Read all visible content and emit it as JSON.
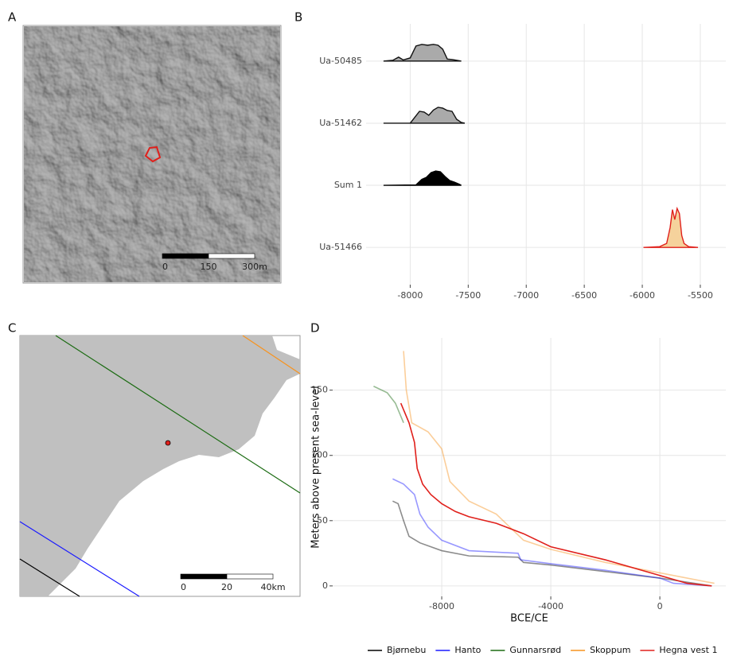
{
  "chart_data": [
    {
      "type": "map",
      "label": "A",
      "scale_bar": [
        0,
        150,
        {
          "value": 300,
          "label": "300m"
        }
      ]
    },
    {
      "type": "ridgeline",
      "label": "B",
      "categories": [
        "Ua-50485",
        "Ua-51462",
        "Sum 1",
        "Ua-51466"
      ],
      "xlim": [
        -8380,
        -5280
      ],
      "xticks": [
        -8000,
        -7500,
        -7000,
        -6500,
        -6000,
        -5500
      ],
      "grid": true,
      "ridges": [
        {
          "x": [
            -8230,
            -8150,
            -8100,
            -8060,
            -8000,
            -7950,
            -7900,
            -7850,
            -7800,
            -7760,
            -7720,
            -7680,
            -7640,
            -7600,
            -7560
          ],
          "values": [
            0,
            0.02,
            0.1,
            0.03,
            0.08,
            0.38,
            0.42,
            0.4,
            0.42,
            0.4,
            0.3,
            0.05,
            0.04,
            0.02,
            0
          ],
          "fill": "#aaaaaa",
          "color": "#111111"
        },
        {
          "x": [
            -8230,
            -8000,
            -7960,
            -7920,
            -7880,
            -7840,
            -7800,
            -7760,
            -7720,
            -7680,
            -7640,
            -7600,
            -7560,
            -7530
          ],
          "values": [
            0,
            0,
            0.15,
            0.3,
            0.28,
            0.2,
            0.33,
            0.4,
            0.38,
            0.32,
            0.3,
            0.1,
            0.02,
            0
          ],
          "fill": "#aaaaaa",
          "color": "#111111"
        },
        {
          "x": [
            -8230,
            -7950,
            -7900,
            -7860,
            -7820,
            -7780,
            -7740,
            -7700,
            -7660,
            -7620,
            -7580,
            -7560
          ],
          "values": [
            0,
            0.01,
            0.15,
            0.2,
            0.32,
            0.36,
            0.34,
            0.22,
            0.12,
            0.08,
            0.03,
            0
          ],
          "fill": "#000000",
          "color": "#000000"
        },
        {
          "x": [
            -5990,
            -5850,
            -5790,
            -5760,
            -5740,
            -5720,
            -5700,
            -5680,
            -5660,
            -5640,
            -5600,
            -5520
          ],
          "values": [
            0,
            0.02,
            0.1,
            0.5,
            0.95,
            0.7,
            0.98,
            0.85,
            0.3,
            0.1,
            0.02,
            0
          ],
          "fill": "#f5d29c",
          "color": "#e0201b"
        }
      ]
    },
    {
      "type": "map",
      "label": "C",
      "scale_bar": [
        0,
        20,
        {
          "value": 40,
          "label": "40km"
        }
      ]
    },
    {
      "type": "line",
      "label": "D",
      "xlabel": "BCE/CE",
      "ylabel": "Meters above present sea-level",
      "xlim": [
        -12000,
        2420
      ],
      "ylim": [
        -8,
        190
      ],
      "xticks": [
        -8000,
        -4000,
        0
      ],
      "yticks": [
        0,
        50,
        100,
        150
      ],
      "grid": true,
      "legend": "bottom",
      "series": [
        {
          "name": "Bjørnebu",
          "color": "#000000",
          "x": [
            -9800,
            -9600,
            -9400,
            -9200,
            -8800,
            -8000,
            -7000,
            -5200,
            -5000,
            -4000,
            -2000,
            0,
            1900
          ],
          "values": [
            65,
            63,
            50,
            38,
            33,
            27,
            23,
            22,
            18,
            16,
            11,
            6,
            0
          ]
        },
        {
          "name": "Hanto",
          "color": "#1a1aff",
          "x": [
            -9800,
            -9400,
            -9000,
            -8800,
            -8500,
            -8000,
            -7000,
            -5200,
            -5100,
            -4000,
            -2000,
            0,
            500,
            1900
          ],
          "values": [
            82,
            78,
            70,
            55,
            45,
            35,
            27,
            25,
            20,
            17,
            12,
            6,
            2,
            0
          ]
        },
        {
          "name": "Gunnarsrød",
          "color": "#1b6b12",
          "x": [
            -10500,
            -10000,
            -9700,
            -9400
          ],
          "values": [
            153,
            148,
            140,
            125
          ]
        },
        {
          "name": "Skoppum",
          "color": "#f7931e",
          "x": [
            -9400,
            -9300,
            -9100,
            -8500,
            -8000,
            -7700,
            -7000,
            -6000,
            -5000,
            -4000,
            -2000,
            0,
            2000
          ],
          "values": [
            180,
            150,
            125,
            118,
            105,
            80,
            65,
            55,
            35,
            28,
            18,
            10,
            2
          ]
        },
        {
          "name": "Hegna vest 1",
          "color": "#e0201b",
          "x": [
            -9500,
            -9200,
            -9000,
            -8900,
            -8700,
            -8400,
            -8000,
            -7500,
            -7000,
            -6000,
            -5000,
            -4000,
            -2000,
            0,
            1000,
            1900
          ],
          "values": [
            140,
            125,
            110,
            90,
            78,
            70,
            63,
            57,
            53,
            48,
            40,
            30,
            20,
            8,
            2,
            0
          ]
        }
      ]
    }
  ]
}
